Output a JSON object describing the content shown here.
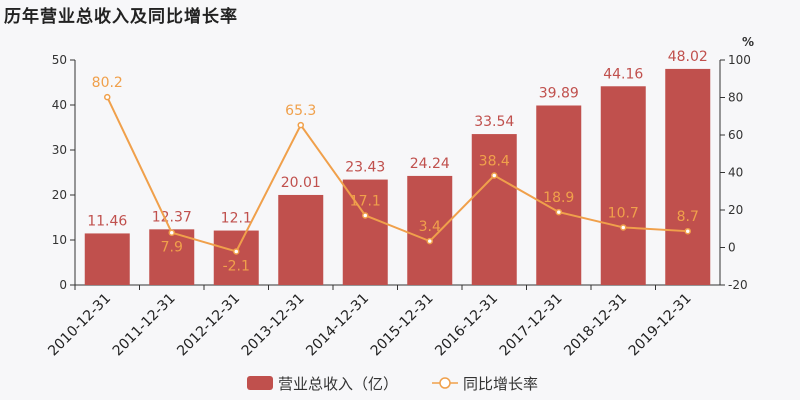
{
  "chart_data": {
    "type": "bar+line",
    "title": "历年营业总收入及同比增长率",
    "categories": [
      "2010-12-31",
      "2011-12-31",
      "2012-12-31",
      "2013-12-31",
      "2014-12-31",
      "2015-12-31",
      "2016-12-31",
      "2017-12-31",
      "2018-12-31",
      "2019-12-31"
    ],
    "series": [
      {
        "name": "营业总收入（亿）",
        "type": "bar",
        "axis": "left",
        "color": "#c0504d",
        "values": [
          11.46,
          12.37,
          12.1,
          20.01,
          23.43,
          24.24,
          33.54,
          39.89,
          44.16,
          48.02
        ],
        "labels": [
          "11.46",
          "12.37",
          "12.1",
          "20.01",
          "23.43",
          "24.24",
          "33.54",
          "39.89",
          "44.16",
          "48.02"
        ]
      },
      {
        "name": "同比增长率",
        "type": "line",
        "axis": "right",
        "color": "#f0a04b",
        "values": [
          80.2,
          7.9,
          -2.1,
          65.3,
          17.1,
          3.4,
          38.4,
          18.9,
          10.7,
          8.7
        ],
        "labels": [
          "80.2",
          "7.9",
          "-2.1",
          "65.3",
          "17.1",
          "3.4",
          "38.4",
          "18.9",
          "10.7",
          "8.7"
        ]
      }
    ],
    "y_left": {
      "range": [
        0,
        50
      ],
      "ticks": [
        "0",
        "10",
        "20",
        "30",
        "40",
        "50"
      ]
    },
    "y_right": {
      "range": [
        -20,
        100
      ],
      "ticks": [
        "-20",
        "0",
        "20",
        "40",
        "60",
        "80",
        "100"
      ],
      "unit": "%"
    },
    "grid": false,
    "legend": "bottom"
  }
}
